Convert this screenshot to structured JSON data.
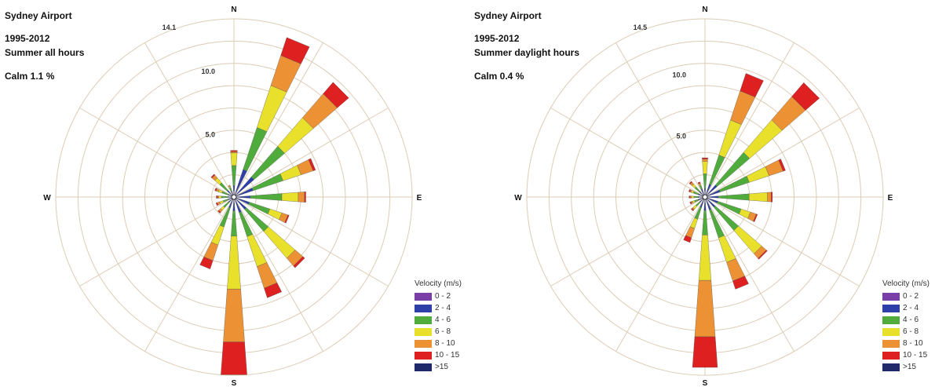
{
  "legend": {
    "title": "Velocity (m/s)",
    "bins": [
      {
        "label": "0 - 2",
        "color": "#7a3fa6"
      },
      {
        "label": "2 - 4",
        "color": "#2d3fa8"
      },
      {
        "label": "4 - 6",
        "color": "#4fac3c"
      },
      {
        "label": "6 - 8",
        "color": "#e8e02a"
      },
      {
        "label": "8 - 10",
        "color": "#ec9235"
      },
      {
        "label": "10 - 15",
        "color": "#de2020"
      },
      {
        "label": ">15",
        "color": "#202a6a"
      }
    ]
  },
  "chart_data": [
    {
      "type": "windrose",
      "title": "Sydney Airport",
      "period": "1995-2012",
      "subtitle": "Summer all hours",
      "calm": "Calm 1.1 %",
      "compass": [
        "N",
        "E",
        "S",
        "W"
      ],
      "max_label": "14.1",
      "r_max": 14.1,
      "ring_labels": [
        {
          "value": 5,
          "label": "5.0"
        },
        {
          "value": 10,
          "label": "10.0"
        }
      ],
      "directions": [
        0,
        22.5,
        45,
        67.5,
        90,
        112.5,
        135,
        157.5,
        180,
        202.5,
        225,
        247.5,
        270,
        292.5,
        315,
        337.5
      ],
      "frequencies_pct": [
        [
          0.1,
          0.8,
          1.6,
          1.0,
          0.1,
          0.1,
          0.0
        ],
        [
          0.1,
          2.2,
          3.5,
          3.5,
          2.5,
          1.5,
          0.0
        ],
        [
          0.1,
          2.0,
          3.2,
          3.0,
          2.5,
          1.2,
          0.0
        ],
        [
          0.1,
          1.5,
          2.5,
          1.5,
          1.0,
          0.2,
          0.0
        ],
        [
          0.1,
          1.2,
          2.5,
          1.3,
          0.5,
          0.1,
          0.0
        ],
        [
          0.1,
          1.2,
          1.7,
          1.0,
          0.5,
          0.1,
          0.0
        ],
        [
          0.1,
          1.2,
          2.3,
          2.8,
          0.8,
          0.2,
          0.0
        ],
        [
          0.1,
          1.2,
          2.0,
          2.5,
          1.8,
          0.8,
          0.0
        ],
        [
          0.1,
          1.0,
          2.0,
          4.2,
          4.2,
          2.6,
          0.0
        ],
        [
          0.1,
          0.8,
          1.6,
          1.5,
          1.3,
          0.7,
          0.0
        ],
        [
          0.1,
          0.5,
          0.5,
          0.3,
          0.2,
          0.1,
          0.0
        ],
        [
          0.1,
          0.4,
          0.4,
          0.3,
          0.2,
          0.1,
          0.0
        ],
        [
          0.1,
          0.4,
          0.5,
          0.2,
          0.1,
          0.1,
          0.0
        ],
        [
          0.1,
          0.4,
          0.5,
          0.3,
          0.2,
          0.1,
          0.0
        ],
        [
          0.1,
          0.6,
          0.8,
          0.5,
          0.3,
          0.1,
          0.0
        ],
        [
          0.1,
          0.4,
          0.3,
          0.1,
          0.1,
          0.0,
          0.0
        ]
      ]
    },
    {
      "type": "windrose",
      "title": "Sydney Airport",
      "period": "1995-2012",
      "subtitle": "Summer daylight hours",
      "calm": "Calm 0.4 %",
      "compass": [
        "N",
        "E",
        "S",
        "W"
      ],
      "max_label": "14.5",
      "r_max": 14.5,
      "ring_labels": [
        {
          "value": 5,
          "label": "5.0"
        },
        {
          "value": 10,
          "label": "10.0"
        }
      ],
      "directions": [
        0,
        22.5,
        45,
        67.5,
        90,
        112.5,
        135,
        157.5,
        180,
        202.5,
        225,
        247.5,
        270,
        292.5,
        315,
        337.5
      ],
      "frequencies_pct": [
        [
          0.1,
          0.6,
          1.2,
          1.0,
          0.2,
          0.1,
          0.0
        ],
        [
          0.1,
          1.0,
          2.5,
          3.0,
          2.5,
          1.5,
          0.0
        ],
        [
          0.1,
          1.2,
          3.5,
          3.5,
          2.5,
          1.5,
          0.0
        ],
        [
          0.1,
          1.2,
          2.5,
          1.7,
          1.2,
          0.2,
          0.0
        ],
        [
          0.1,
          1.0,
          2.5,
          1.5,
          0.3,
          0.1,
          0.0
        ],
        [
          0.1,
          1.0,
          2.0,
          0.8,
          0.5,
          0.1,
          0.0
        ],
        [
          0.1,
          1.0,
          2.5,
          2.5,
          0.5,
          0.1,
          0.0
        ],
        [
          0.1,
          1.0,
          2.4,
          2.1,
          1.6,
          0.7,
          0.0
        ],
        [
          0.1,
          1.0,
          2.0,
          3.7,
          4.6,
          2.5,
          0.0
        ],
        [
          0.1,
          0.8,
          1.0,
          0.8,
          0.8,
          0.4,
          0.0
        ],
        [
          0.1,
          0.5,
          0.4,
          0.3,
          0.1,
          0.1,
          0.0
        ],
        [
          0.1,
          0.5,
          0.3,
          0.2,
          0.1,
          0.1,
          0.0
        ],
        [
          0.1,
          0.5,
          0.3,
          0.2,
          0.1,
          0.1,
          0.0
        ],
        [
          0.1,
          0.5,
          0.4,
          0.2,
          0.1,
          0.1,
          0.0
        ],
        [
          0.1,
          0.5,
          0.5,
          0.3,
          0.2,
          0.1,
          0.0
        ],
        [
          0.1,
          0.6,
          0.3,
          0.1,
          0.1,
          0.1,
          0.0
        ]
      ]
    }
  ]
}
